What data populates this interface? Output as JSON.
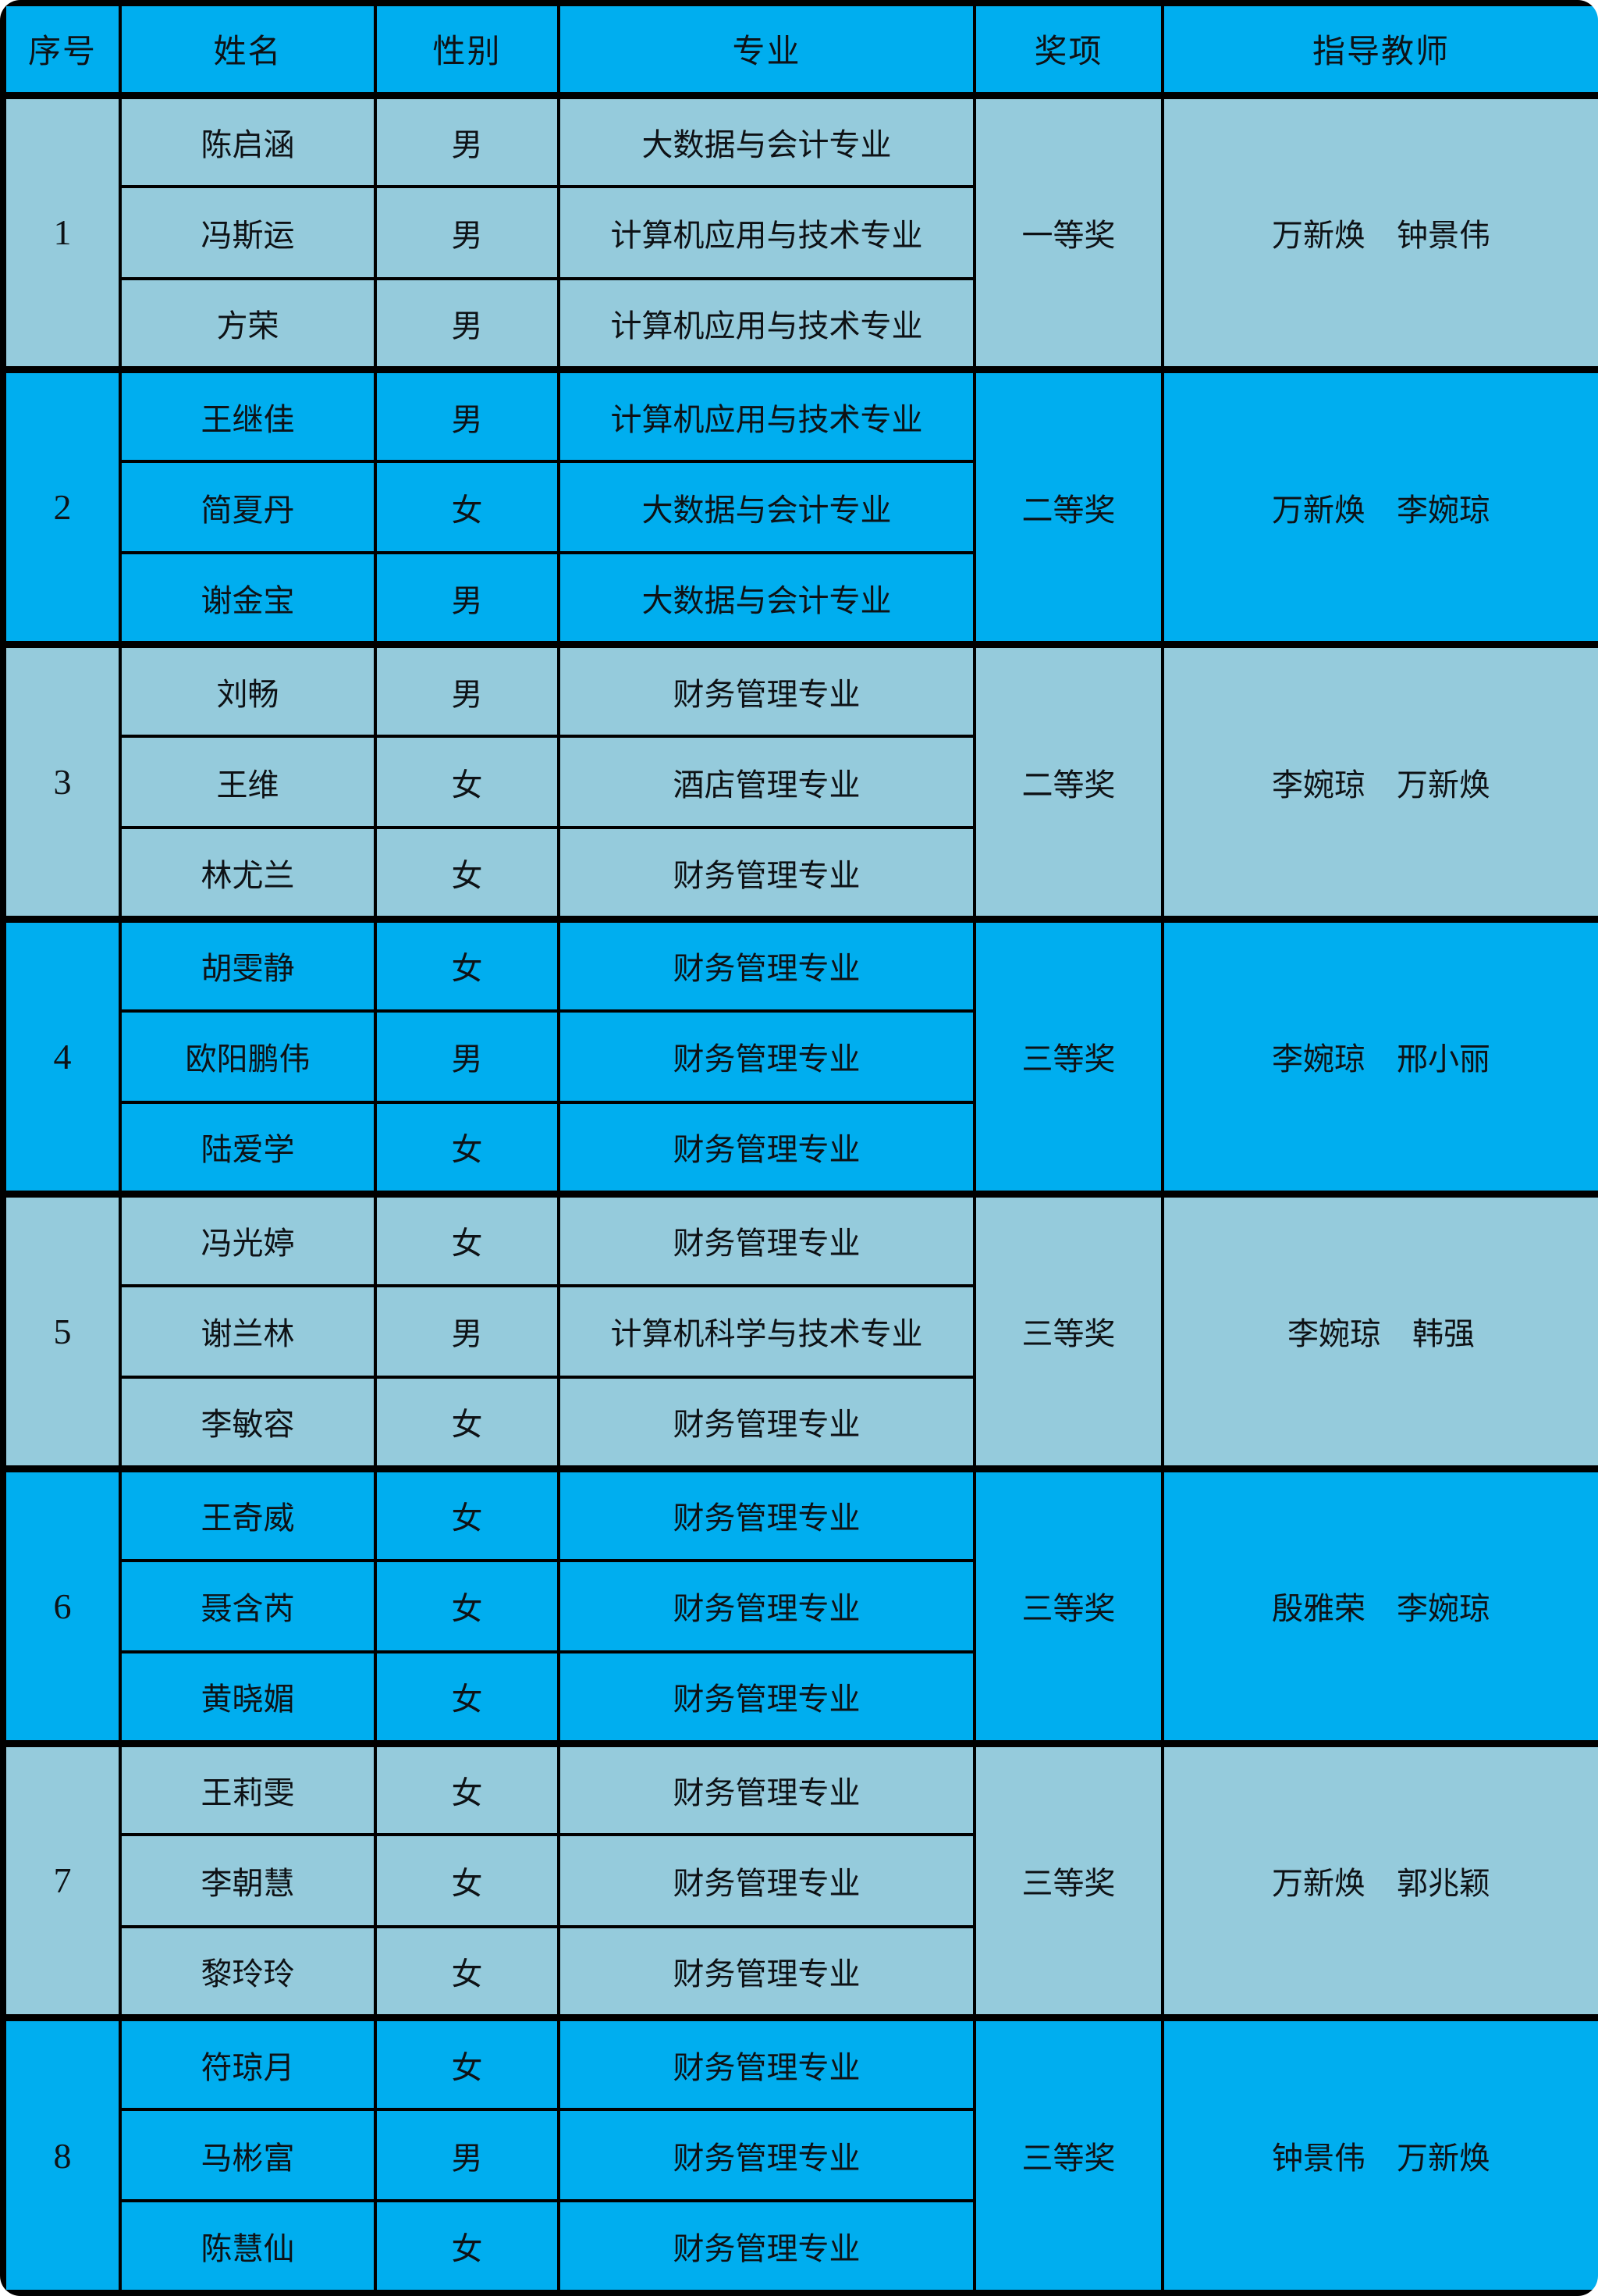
{
  "table": {
    "title_semantic": "student-award-list",
    "columns": [
      {
        "key": "index",
        "label": "序号"
      },
      {
        "key": "name",
        "label": "姓名"
      },
      {
        "key": "gender",
        "label": "性别"
      },
      {
        "key": "major",
        "label": "专业"
      },
      {
        "key": "award",
        "label": "奖项"
      },
      {
        "key": "teachers",
        "label": "指导教师"
      }
    ],
    "colors": {
      "header_bg": "#00AEEF",
      "group_bright_bg": "#00AEEF",
      "group_light_bg": "#95CBDC",
      "grid_border": "#000000",
      "text": "#0e1216"
    },
    "groups": [
      {
        "index": "1",
        "award": "一等奖",
        "teachers": "万新焕　钟景伟",
        "tone": "light",
        "students": [
          {
            "name": "陈启涵",
            "gender": "男",
            "major": "大数据与会计专业"
          },
          {
            "name": "冯斯运",
            "gender": "男",
            "major": "计算机应用与技术专业"
          },
          {
            "name": "方荣",
            "gender": "男",
            "major": "计算机应用与技术专业"
          }
        ]
      },
      {
        "index": "2",
        "award": "二等奖",
        "teachers": "万新焕　李婉琼",
        "tone": "bright",
        "students": [
          {
            "name": "王继佳",
            "gender": "男",
            "major": "计算机应用与技术专业"
          },
          {
            "name": "简夏丹",
            "gender": "女",
            "major": "大数据与会计专业"
          },
          {
            "name": "谢金宝",
            "gender": "男",
            "major": "大数据与会计专业"
          }
        ]
      },
      {
        "index": "3",
        "award": "二等奖",
        "teachers": "李婉琼　万新焕",
        "tone": "light",
        "students": [
          {
            "name": "刘畅",
            "gender": "男",
            "major": "财务管理专业"
          },
          {
            "name": "王维",
            "gender": "女",
            "major": "酒店管理专业"
          },
          {
            "name": "林尤兰",
            "gender": "女",
            "major": "财务管理专业"
          }
        ]
      },
      {
        "index": "4",
        "award": "三等奖",
        "teachers": "李婉琼　邢小丽",
        "tone": "bright",
        "students": [
          {
            "name": "胡雯静",
            "gender": "女",
            "major": "财务管理专业"
          },
          {
            "name": "欧阳鹏伟",
            "gender": "男",
            "major": "财务管理专业"
          },
          {
            "name": "陆爱学",
            "gender": "女",
            "major": "财务管理专业"
          }
        ]
      },
      {
        "index": "5",
        "award": "三等奖",
        "teachers": "李婉琼　韩强",
        "tone": "light",
        "students": [
          {
            "name": "冯光婷",
            "gender": "女",
            "major": "财务管理专业"
          },
          {
            "name": "谢兰林",
            "gender": "男",
            "major": "计算机科学与技术专业"
          },
          {
            "name": "李敏容",
            "gender": "女",
            "major": "财务管理专业"
          }
        ]
      },
      {
        "index": "6",
        "award": "三等奖",
        "teachers": "殷雅荣　李婉琼",
        "tone": "bright",
        "students": [
          {
            "name": "王奇威",
            "gender": "女",
            "major": "财务管理专业"
          },
          {
            "name": "聂含芮",
            "gender": "女",
            "major": "财务管理专业"
          },
          {
            "name": "黄晓媚",
            "gender": "女",
            "major": "财务管理专业"
          }
        ]
      },
      {
        "index": "7",
        "award": "三等奖",
        "teachers": "万新焕　郭兆颖",
        "tone": "light",
        "students": [
          {
            "name": "王莉雯",
            "gender": "女",
            "major": "财务管理专业"
          },
          {
            "name": "李朝慧",
            "gender": "女",
            "major": "财务管理专业"
          },
          {
            "name": "黎玲玲",
            "gender": "女",
            "major": "财务管理专业"
          }
        ]
      },
      {
        "index": "8",
        "award": "三等奖",
        "teachers": "钟景伟　万新焕",
        "tone": "bright",
        "students": [
          {
            "name": "符琼月",
            "gender": "女",
            "major": "财务管理专业"
          },
          {
            "name": "马彬富",
            "gender": "男",
            "major": "财务管理专业"
          },
          {
            "name": "陈慧仙",
            "gender": "女",
            "major": "财务管理专业"
          }
        ]
      }
    ]
  }
}
